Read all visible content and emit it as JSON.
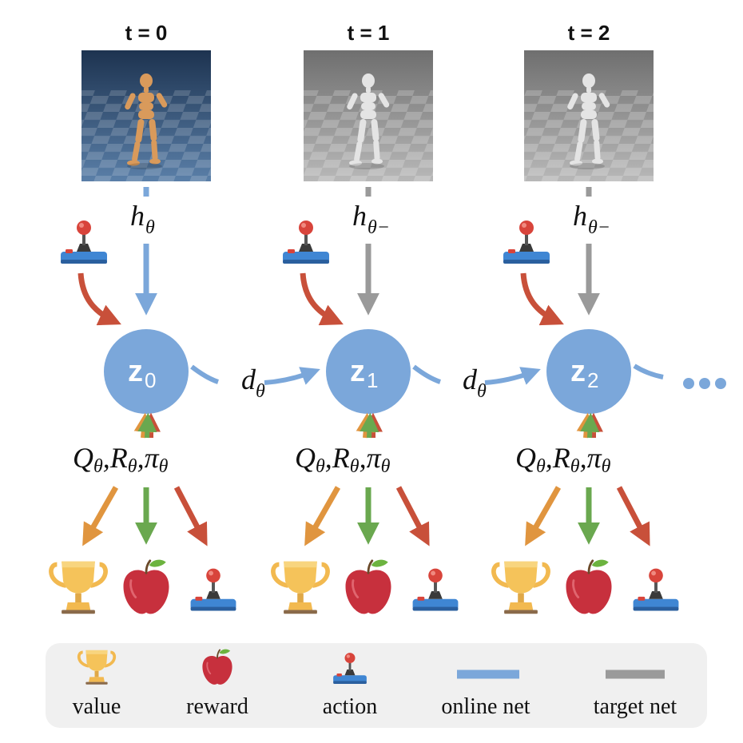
{
  "steps": [
    {
      "title": "t = 0",
      "encoder": "h",
      "encoder_sub": "θ",
      "node_sub": "0",
      "state": "online"
    },
    {
      "title": "t = 1",
      "encoder": "h",
      "encoder_sub": "θ−",
      "node_sub": "1",
      "state": "target"
    },
    {
      "title": "t = 2",
      "encoder": "h",
      "encoder_sub": "θ−",
      "node_sub": "2",
      "state": "target"
    }
  ],
  "node_symbol": "z",
  "dynamics": {
    "symbol": "d",
    "sub": "θ"
  },
  "heads": {
    "q": "Q",
    "r": "R",
    "pi": "π",
    "sub": "θ",
    "sep": ","
  },
  "continuation": "…",
  "legend": {
    "value": "value",
    "reward": "reward",
    "action": "action",
    "online": "online net",
    "target": "target net"
  },
  "colors": {
    "online": "#7ba7da",
    "target": "#9a9a9a",
    "node": "#7ba7da",
    "action_arrow": "#c8503a",
    "value_arrow": "#e0953f",
    "reward_arrow": "#6aa84f",
    "legend_bg": "#f0f0f0"
  },
  "icons": [
    "humanoid-frame-icon",
    "joystick-icon",
    "trophy-icon",
    "apple-icon"
  ]
}
